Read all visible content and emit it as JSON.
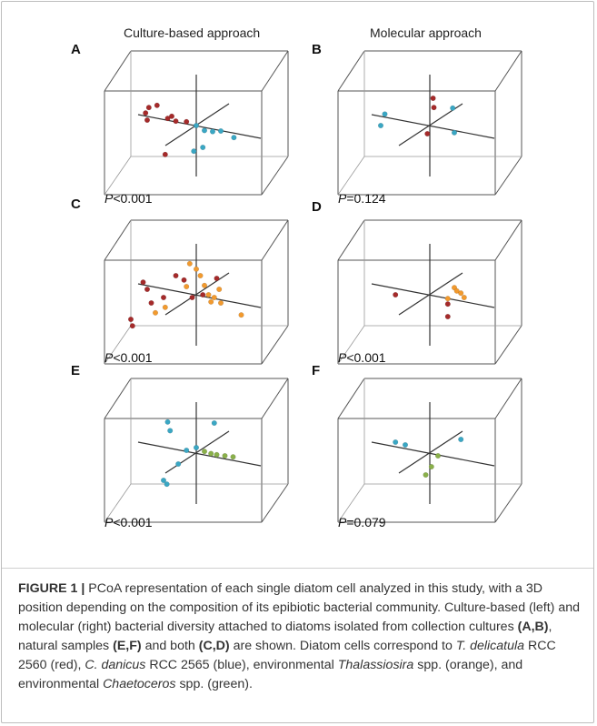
{
  "column_headers": {
    "left": "Culture-based approach",
    "right": "Molecular approach"
  },
  "colors": {
    "red": "#a52a2a",
    "blue": "#3aa7c4",
    "orange": "#f29a2e",
    "green": "#8ab04a"
  },
  "panels": [
    {
      "letter": "A",
      "p_label": "P",
      "p_value": "<0.001",
      "points": [
        {
          "c": "red",
          "x": -0.62,
          "y": 0.18
        },
        {
          "c": "red",
          "x": -0.58,
          "y": 0.28
        },
        {
          "c": "red",
          "x": -0.6,
          "y": 0.05
        },
        {
          "c": "red",
          "x": -0.48,
          "y": 0.32
        },
        {
          "c": "red",
          "x": -0.35,
          "y": 0.08
        },
        {
          "c": "red",
          "x": -0.3,
          "y": 0.12
        },
        {
          "c": "red",
          "x": -0.25,
          "y": 0.03
        },
        {
          "c": "red",
          "x": -0.12,
          "y": 0.02
        },
        {
          "c": "red",
          "x": -0.38,
          "y": -0.58
        },
        {
          "c": "blue",
          "x": 0.0,
          "y": -0.05
        },
        {
          "c": "blue",
          "x": 0.1,
          "y": -0.14
        },
        {
          "c": "blue",
          "x": 0.2,
          "y": -0.16
        },
        {
          "c": "blue",
          "x": 0.3,
          "y": -0.15
        },
        {
          "c": "blue",
          "x": 0.46,
          "y": -0.27
        },
        {
          "c": "blue",
          "x": 0.08,
          "y": -0.45
        },
        {
          "c": "blue",
          "x": -0.03,
          "y": -0.52
        }
      ]
    },
    {
      "letter": "B",
      "p_label": "P",
      "p_value": "=0.124",
      "points": [
        {
          "c": "red",
          "x": 0.04,
          "y": 0.45
        },
        {
          "c": "red",
          "x": 0.05,
          "y": 0.28
        },
        {
          "c": "red",
          "x": -0.03,
          "y": -0.2
        },
        {
          "c": "blue",
          "x": -0.55,
          "y": 0.16
        },
        {
          "c": "blue",
          "x": -0.6,
          "y": -0.05
        },
        {
          "c": "blue",
          "x": 0.28,
          "y": 0.27
        },
        {
          "c": "blue",
          "x": 0.3,
          "y": -0.18
        }
      ]
    },
    {
      "letter": "C",
      "p_label": "P",
      "p_value": "<0.001",
      "points": [
        {
          "c": "red",
          "x": -0.65,
          "y": 0.18
        },
        {
          "c": "red",
          "x": -0.6,
          "y": 0.05
        },
        {
          "c": "red",
          "x": -0.55,
          "y": -0.2
        },
        {
          "c": "red",
          "x": -0.4,
          "y": -0.1
        },
        {
          "c": "red",
          "x": -0.25,
          "y": 0.3
        },
        {
          "c": "red",
          "x": -0.15,
          "y": 0.22
        },
        {
          "c": "red",
          "x": -0.05,
          "y": -0.1
        },
        {
          "c": "red",
          "x": 0.08,
          "y": -0.05
        },
        {
          "c": "red",
          "x": 0.25,
          "y": 0.25
        },
        {
          "c": "red",
          "x": -0.78,
          "y": -0.62
        },
        {
          "c": "red",
          "x": -0.8,
          "y": -0.5
        },
        {
          "c": "orange",
          "x": -0.08,
          "y": 0.52
        },
        {
          "c": "orange",
          "x": 0.0,
          "y": 0.42
        },
        {
          "c": "orange",
          "x": 0.05,
          "y": 0.3
        },
        {
          "c": "orange",
          "x": -0.12,
          "y": 0.1
        },
        {
          "c": "orange",
          "x": 0.1,
          "y": 0.12
        },
        {
          "c": "orange",
          "x": 0.15,
          "y": -0.05
        },
        {
          "c": "orange",
          "x": 0.22,
          "y": -0.1
        },
        {
          "c": "orange",
          "x": 0.18,
          "y": -0.18
        },
        {
          "c": "orange",
          "x": 0.3,
          "y": -0.2
        },
        {
          "c": "orange",
          "x": -0.38,
          "y": -0.28
        },
        {
          "c": "orange",
          "x": -0.5,
          "y": -0.38
        },
        {
          "c": "orange",
          "x": 0.55,
          "y": -0.42
        },
        {
          "c": "orange",
          "x": 0.28,
          "y": 0.05
        }
      ]
    },
    {
      "letter": "D",
      "p_label": "P",
      "p_value": "<0.001",
      "points": [
        {
          "c": "red",
          "x": -0.42,
          "y": -0.05
        },
        {
          "c": "red",
          "x": 0.22,
          "y": -0.22
        },
        {
          "c": "red",
          "x": 0.22,
          "y": -0.45
        },
        {
          "c": "orange",
          "x": 0.3,
          "y": 0.08
        },
        {
          "c": "orange",
          "x": 0.33,
          "y": 0.02
        },
        {
          "c": "orange",
          "x": 0.38,
          "y": -0.02
        },
        {
          "c": "orange",
          "x": 0.22,
          "y": -0.12
        },
        {
          "c": "orange",
          "x": 0.42,
          "y": -0.1
        }
      ]
    },
    {
      "letter": "E",
      "p_label": "P",
      "p_value": "<0.001",
      "points": [
        {
          "c": "blue",
          "x": -0.35,
          "y": 0.52
        },
        {
          "c": "blue",
          "x": -0.32,
          "y": 0.36
        },
        {
          "c": "blue",
          "x": 0.22,
          "y": 0.5
        },
        {
          "c": "blue",
          "x": 0.0,
          "y": 0.05
        },
        {
          "c": "blue",
          "x": -0.12,
          "y": 0.0
        },
        {
          "c": "blue",
          "x": -0.22,
          "y": -0.25
        },
        {
          "c": "blue",
          "x": -0.4,
          "y": -0.55
        },
        {
          "c": "blue",
          "x": -0.36,
          "y": -0.62
        },
        {
          "c": "green",
          "x": 0.1,
          "y": -0.02
        },
        {
          "c": "green",
          "x": 0.18,
          "y": -0.06
        },
        {
          "c": "green",
          "x": 0.25,
          "y": -0.08
        },
        {
          "c": "green",
          "x": 0.35,
          "y": -0.1
        },
        {
          "c": "green",
          "x": 0.45,
          "y": -0.12
        }
      ]
    },
    {
      "letter": "F",
      "p_label": "P",
      "p_value": "=0.079",
      "points": [
        {
          "c": "blue",
          "x": -0.42,
          "y": 0.15
        },
        {
          "c": "blue",
          "x": -0.3,
          "y": 0.1
        },
        {
          "c": "blue",
          "x": 0.38,
          "y": 0.2
        },
        {
          "c": "green",
          "x": 0.1,
          "y": -0.1
        },
        {
          "c": "green",
          "x": 0.02,
          "y": -0.3
        },
        {
          "c": "green",
          "x": -0.05,
          "y": -0.45
        }
      ]
    }
  ],
  "caption": {
    "label": "FIGURE 1 |",
    "text_1": " PCoA representation of each single diatom cell analyzed in this study, with a 3D position depending on the composition of its epibiotic bacterial community. Culture-based (left) and molecular (right) bacterial diversity attached to diatoms isolated from collection cultures ",
    "ref_1": "(A,B)",
    "text_2": ", natural samples ",
    "ref_2": "(E,F)",
    "text_3": " and both ",
    "ref_3": "(C,D)",
    "text_4": " are shown. Diatom cells correspond to ",
    "species_1a": "T. delicatula",
    "text_5": " RCC 2560 (red), ",
    "species_2": "C. danicus",
    "text_6": " RCC 2565 (blue), environmental ",
    "species_3": "Thalassiosira",
    "text_7": " spp. (orange), and environmental ",
    "species_4": "Chaetoceros",
    "text_8": " spp. (green)."
  }
}
